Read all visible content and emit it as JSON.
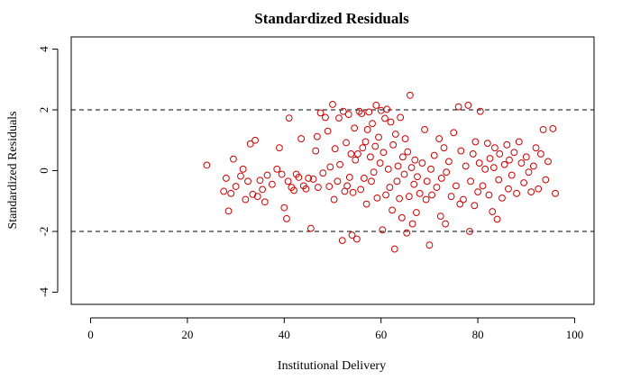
{
  "chart_data": {
    "type": "scatter",
    "title": "Standardized Residuals",
    "xlabel": "Institutional Delivery",
    "ylabel": "Standardized Residuals",
    "xlim": [
      -4,
      104
    ],
    "ylim": [
      -4.4,
      4.4
    ],
    "xticks": [
      0,
      20,
      40,
      60,
      80,
      100
    ],
    "yticks": [
      -4,
      -2,
      0,
      2,
      4
    ],
    "reference_lines_y": [
      -2,
      2
    ],
    "grid": false,
    "point_color": "#cc0000",
    "points": [
      [
        24.0,
        0.18
      ],
      [
        27.5,
        -0.68
      ],
      [
        28.0,
        -0.25
      ],
      [
        28.5,
        -1.33
      ],
      [
        29.0,
        -0.75
      ],
      [
        29.5,
        0.38
      ],
      [
        30.0,
        -0.52
      ],
      [
        31.0,
        -0.18
      ],
      [
        31.5,
        0.05
      ],
      [
        32.0,
        -0.95
      ],
      [
        32.5,
        -0.35
      ],
      [
        33.0,
        0.88
      ],
      [
        33.5,
        -0.78
      ],
      [
        34.0,
        1.0
      ],
      [
        34.5,
        -0.85
      ],
      [
        35.0,
        -0.32
      ],
      [
        35.5,
        -0.62
      ],
      [
        36.0,
        -1.03
      ],
      [
        36.5,
        -0.15
      ],
      [
        37.5,
        -0.45
      ],
      [
        38.5,
        0.05
      ],
      [
        39.0,
        0.75
      ],
      [
        39.5,
        -0.12
      ],
      [
        40.0,
        -1.22
      ],
      [
        40.5,
        -1.58
      ],
      [
        40.8,
        -0.35
      ],
      [
        41.0,
        1.73
      ],
      [
        41.5,
        -0.55
      ],
      [
        42.0,
        -0.65
      ],
      [
        42.5,
        -0.12
      ],
      [
        43.0,
        -0.22
      ],
      [
        43.5,
        1.05
      ],
      [
        44.0,
        -0.5
      ],
      [
        44.5,
        -0.6
      ],
      [
        45.0,
        -0.25
      ],
      [
        45.5,
        -1.9
      ],
      [
        46.0,
        -0.28
      ],
      [
        46.5,
        0.65
      ],
      [
        46.8,
        1.12
      ],
      [
        47.0,
        -0.55
      ],
      [
        47.5,
        1.9
      ],
      [
        48.0,
        -0.08
      ],
      [
        48.5,
        1.75
      ],
      [
        49.0,
        1.3
      ],
      [
        49.3,
        -0.52
      ],
      [
        49.5,
        0.12
      ],
      [
        50.0,
        2.18
      ],
      [
        50.3,
        -0.95
      ],
      [
        50.5,
        0.72
      ],
      [
        51.0,
        -0.35
      ],
      [
        51.3,
        1.73
      ],
      [
        51.5,
        0.2
      ],
      [
        52.0,
        -2.3
      ],
      [
        52.2,
        1.95
      ],
      [
        52.5,
        -0.68
      ],
      [
        52.8,
        0.92
      ],
      [
        53.0,
        -0.5
      ],
      [
        53.3,
        1.85
      ],
      [
        53.5,
        -0.22
      ],
      [
        53.8,
        0.55
      ],
      [
        54.0,
        -2.12
      ],
      [
        54.2,
        -0.72
      ],
      [
        54.5,
        1.4
      ],
      [
        54.7,
        0.35
      ],
      [
        55.0,
        -2.25
      ],
      [
        55.2,
        0.55
      ],
      [
        55.5,
        1.95
      ],
      [
        55.8,
        -0.62
      ],
      [
        56.0,
        1.88
      ],
      [
        56.2,
        0.75
      ],
      [
        56.5,
        -0.25
      ],
      [
        56.8,
        0.95
      ],
      [
        57.0,
        -1.1
      ],
      [
        57.2,
        1.35
      ],
      [
        57.5,
        1.93
      ],
      [
        57.8,
        0.45
      ],
      [
        58.0,
        -0.35
      ],
      [
        58.2,
        1.55
      ],
      [
        58.5,
        -0.05
      ],
      [
        58.8,
        0.8
      ],
      [
        59.0,
        2.15
      ],
      [
        59.2,
        -0.9
      ],
      [
        59.5,
        1.1
      ],
      [
        59.8,
        0.25
      ],
      [
        60.0,
        1.98
      ],
      [
        60.3,
        -1.95
      ],
      [
        60.5,
        0.6
      ],
      [
        60.8,
        1.72
      ],
      [
        61.0,
        -0.8
      ],
      [
        61.2,
        2.02
      ],
      [
        61.5,
        0.05
      ],
      [
        61.8,
        -0.55
      ],
      [
        62.0,
        1.6
      ],
      [
        62.3,
        -1.3
      ],
      [
        62.5,
        0.85
      ],
      [
        62.8,
        -2.58
      ],
      [
        63.0,
        1.2
      ],
      [
        63.3,
        -0.35
      ],
      [
        63.5,
        0.15
      ],
      [
        63.8,
        -0.92
      ],
      [
        64.0,
        1.75
      ],
      [
        64.3,
        -1.55
      ],
      [
        64.5,
        0.45
      ],
      [
        64.8,
        -0.12
      ],
      [
        65.0,
        1.05
      ],
      [
        65.3,
        -2.05
      ],
      [
        65.5,
        0.62
      ],
      [
        65.8,
        -0.85
      ],
      [
        66.0,
        2.48
      ],
      [
        66.3,
        0.1
      ],
      [
        66.5,
        -1.75
      ],
      [
        66.8,
        -0.45
      ],
      [
        67.0,
        0.35
      ],
      [
        67.3,
        -1.38
      ],
      [
        67.5,
        -0.2
      ],
      [
        68.0,
        -0.75
      ],
      [
        68.5,
        0.25
      ],
      [
        69.0,
        1.35
      ],
      [
        69.3,
        -0.95
      ],
      [
        69.5,
        -0.35
      ],
      [
        70.0,
        -2.45
      ],
      [
        70.3,
        0.05
      ],
      [
        70.5,
        -0.8
      ],
      [
        71.0,
        0.5
      ],
      [
        71.5,
        -0.55
      ],
      [
        72.0,
        1.05
      ],
      [
        72.3,
        -1.5
      ],
      [
        72.5,
        -0.25
      ],
      [
        73.0,
        0.75
      ],
      [
        73.3,
        -1.75
      ],
      [
        73.5,
        -0.05
      ],
      [
        74.0,
        0.3
      ],
      [
        74.5,
        -0.85
      ],
      [
        75.0,
        1.25
      ],
      [
        75.5,
        -0.5
      ],
      [
        76.0,
        2.1
      ],
      [
        76.3,
        -1.1
      ],
      [
        76.5,
        0.65
      ],
      [
        77.0,
        -0.95
      ],
      [
        77.5,
        0.15
      ],
      [
        78.0,
        2.15
      ],
      [
        78.3,
        -2.0
      ],
      [
        78.5,
        -0.35
      ],
      [
        79.0,
        0.55
      ],
      [
        79.3,
        -1.15
      ],
      [
        79.5,
        0.95
      ],
      [
        80.0,
        -0.7
      ],
      [
        80.3,
        0.25
      ],
      [
        80.5,
        1.95
      ],
      [
        81.0,
        -0.5
      ],
      [
        81.5,
        0.05
      ],
      [
        82.0,
        0.9
      ],
      [
        82.3,
        -0.8
      ],
      [
        82.5,
        0.4
      ],
      [
        83.0,
        -1.35
      ],
      [
        83.3,
        0.1
      ],
      [
        83.5,
        0.75
      ],
      [
        84.0,
        -1.6
      ],
      [
        84.3,
        -0.3
      ],
      [
        84.5,
        0.55
      ],
      [
        85.0,
        -0.9
      ],
      [
        85.5,
        0.2
      ],
      [
        86.0,
        0.85
      ],
      [
        86.3,
        -0.6
      ],
      [
        86.5,
        0.35
      ],
      [
        87.0,
        -0.15
      ],
      [
        87.5,
        0.6
      ],
      [
        88.0,
        -0.75
      ],
      [
        88.5,
        0.95
      ],
      [
        89.0,
        0.25
      ],
      [
        89.5,
        -0.4
      ],
      [
        90.0,
        0.45
      ],
      [
        90.5,
        -0.05
      ],
      [
        91.0,
        -0.7
      ],
      [
        91.5,
        0.15
      ],
      [
        92.0,
        0.75
      ],
      [
        92.5,
        -0.6
      ],
      [
        93.0,
        0.55
      ],
      [
        93.5,
        1.35
      ],
      [
        94.0,
        -0.3
      ],
      [
        94.5,
        0.3
      ],
      [
        95.5,
        1.38
      ],
      [
        96.0,
        -0.75
      ]
    ]
  }
}
